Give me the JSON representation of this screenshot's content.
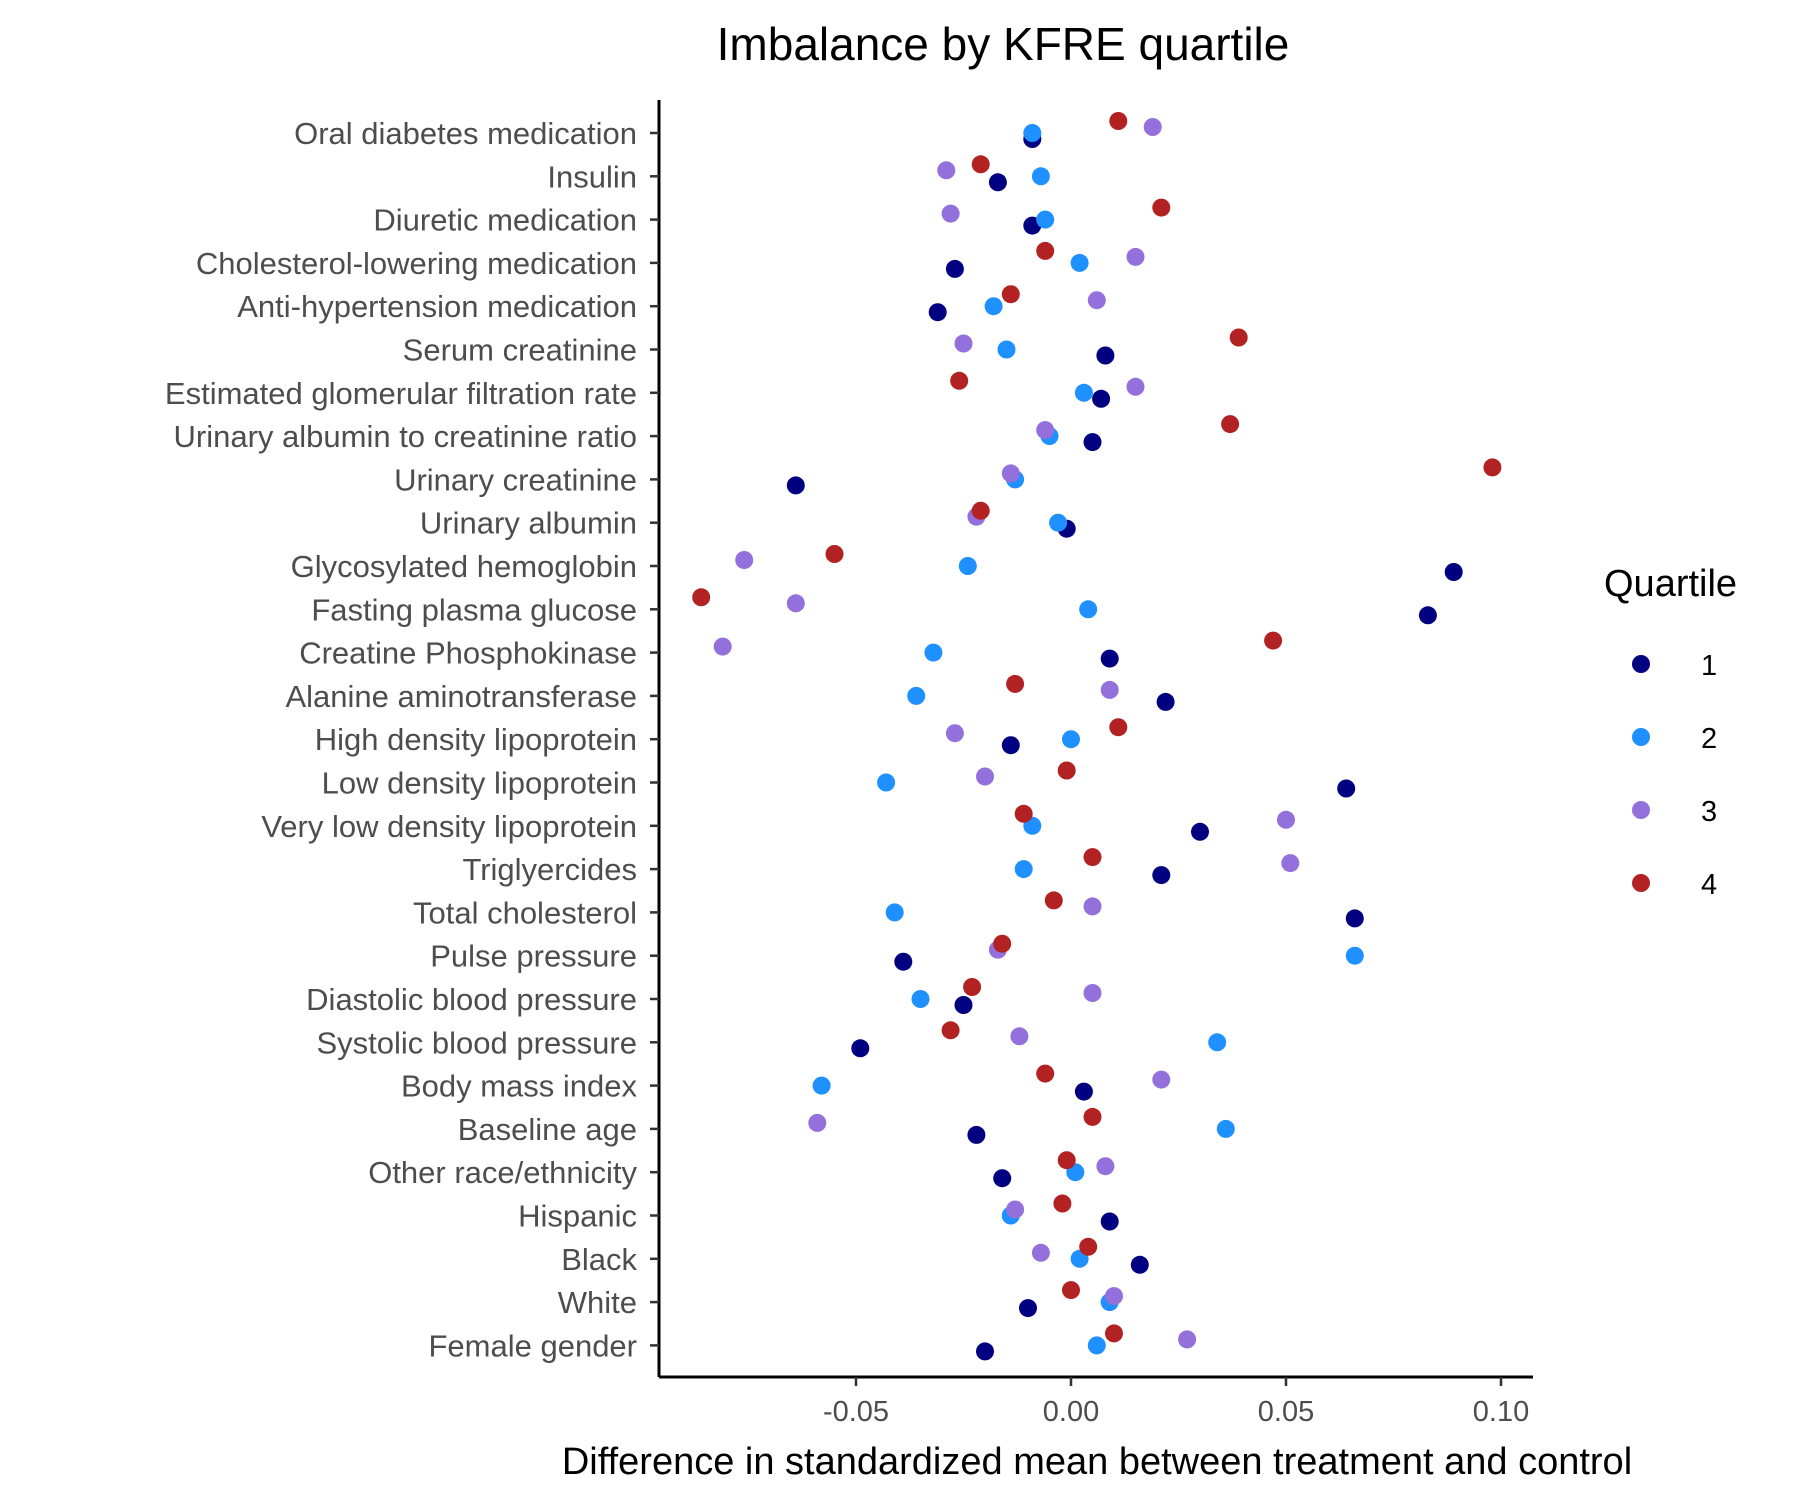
{
  "chart_data": {
    "type": "scatter",
    "title": "Imbalance by KFRE quartile",
    "xlabel": "Difference in standardized mean between treatment and control",
    "ylabel": "",
    "xlim": [
      -0.095,
      0.105
    ],
    "xticks": [
      -0.05,
      0.0,
      0.05,
      0.1
    ],
    "xtick_labels": [
      "-0.05",
      "0.00",
      "0.05",
      "0.10"
    ],
    "grid": false,
    "legend": {
      "title": "Quartile",
      "position": "right"
    },
    "categories": [
      "Oral diabetes medication",
      "Insulin",
      "Diuretic medication",
      "Cholesterol-lowering medication",
      "Anti-hypertension medication",
      "Serum creatinine",
      "Estimated glomerular filtration rate",
      "Urinary albumin to creatinine ratio",
      "Urinary creatinine",
      "Urinary albumin",
      "Glycosylated hemoglobin",
      "Fasting plasma glucose",
      "Creatine Phosphokinase",
      "Alanine aminotransferase",
      "High density lipoprotein",
      "Low density lipoprotein",
      "Very low density lipoprotein",
      "Triglyercides",
      "Total cholesterol",
      "Pulse pressure",
      "Diastolic blood pressure",
      "Systolic blood pressure",
      "Body mass index",
      "Baseline age",
      "Other race/ethnicity",
      "Hispanic",
      "Black",
      "White",
      "Female gender"
    ],
    "series": [
      {
        "name": "1",
        "color": "#000080",
        "values": [
          -0.009,
          -0.017,
          -0.009,
          -0.027,
          -0.031,
          0.008,
          0.007,
          0.005,
          -0.064,
          -0.001,
          0.089,
          0.083,
          0.009,
          0.022,
          -0.014,
          0.064,
          0.03,
          0.021,
          0.066,
          -0.039,
          -0.025,
          -0.049,
          0.003,
          -0.022,
          -0.016,
          0.009,
          0.016,
          -0.01,
          -0.02
        ]
      },
      {
        "name": "2",
        "color": "#1E90FF",
        "values": [
          -0.009,
          -0.007,
          -0.006,
          0.002,
          -0.018,
          -0.015,
          0.003,
          -0.005,
          -0.013,
          -0.003,
          -0.024,
          0.004,
          -0.032,
          -0.036,
          0.0,
          -0.043,
          -0.009,
          -0.011,
          -0.041,
          0.066,
          -0.035,
          0.034,
          -0.058,
          0.036,
          0.001,
          -0.014,
          0.002,
          0.009,
          0.006
        ]
      },
      {
        "name": "3",
        "color": "#9370DB",
        "values": [
          0.019,
          -0.029,
          -0.028,
          0.015,
          0.006,
          -0.025,
          0.015,
          -0.006,
          -0.014,
          -0.022,
          -0.076,
          -0.064,
          -0.081,
          0.009,
          -0.027,
          -0.02,
          0.05,
          0.051,
          0.005,
          -0.017,
          0.005,
          -0.012,
          0.021,
          -0.059,
          0.008,
          -0.013,
          -0.007,
          0.01,
          0.027
        ]
      },
      {
        "name": "4",
        "color": "#B22222",
        "values": [
          0.011,
          -0.021,
          0.021,
          -0.006,
          -0.014,
          0.039,
          -0.026,
          0.037,
          0.098,
          -0.021,
          -0.055,
          -0.086,
          0.047,
          -0.013,
          0.011,
          -0.001,
          -0.011,
          0.005,
          -0.004,
          -0.016,
          -0.023,
          -0.028,
          -0.006,
          0.005,
          -0.001,
          -0.002,
          0.004,
          0.0,
          0.01
        ]
      }
    ]
  }
}
